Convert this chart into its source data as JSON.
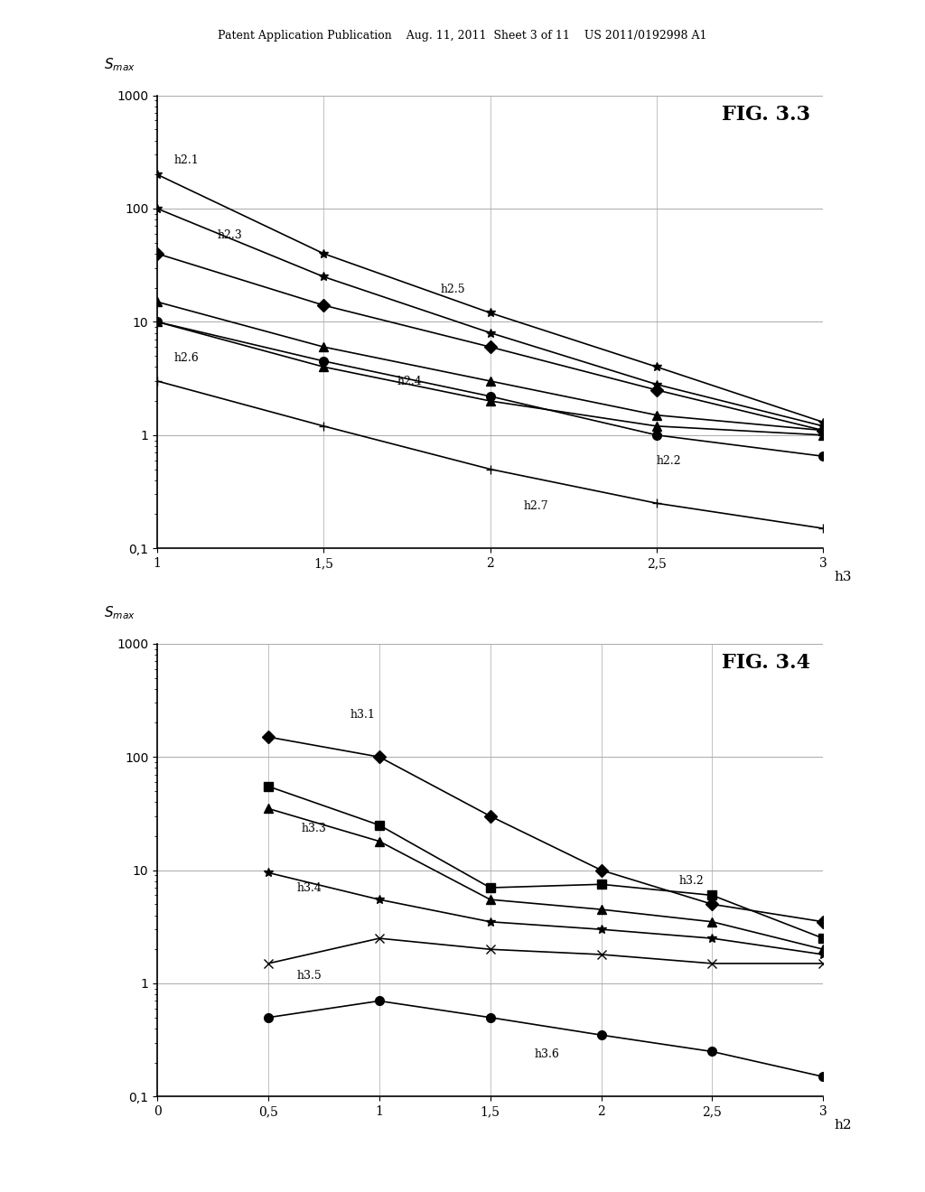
{
  "fig33": {
    "title": "FIG. 3.3",
    "xlabel": "h3",
    "ylabel": "S_max",
    "xvals": [
      1.0,
      1.5,
      2.0,
      2.5,
      3.0
    ],
    "series": {
      "h2.1": {
        "marker": "*",
        "y": [
          200,
          40,
          12,
          4.0,
          1.3
        ]
      },
      "h2.2": {
        "marker": "o",
        "y": [
          10,
          4.5,
          2.2,
          1.0,
          0.65
        ]
      },
      "h2.3": {
        "marker": "*",
        "y": [
          100,
          25,
          8.0,
          2.8,
          1.2
        ]
      },
      "h2.4": {
        "marker": "^",
        "y": [
          15,
          6.0,
          3.0,
          1.5,
          1.1
        ]
      },
      "h2.5": {
        "marker": "D",
        "y": [
          40,
          14,
          6.0,
          2.5,
          1.1
        ]
      },
      "h2.6": {
        "marker": "^",
        "y": [
          10,
          4.0,
          2.0,
          1.2,
          1.0
        ]
      },
      "h2.7": {
        "marker": "+",
        "y": [
          3.0,
          1.2,
          0.5,
          0.25,
          0.15
        ]
      }
    },
    "label_positions": {
      "h2.1": [
        1.05,
        200,
        "h2.1"
      ],
      "h2.3": [
        1.15,
        80,
        "h2.3"
      ],
      "h2.5": [
        1.8,
        14,
        "h2.5"
      ],
      "h2.6": [
        1.05,
        7.5,
        "h2.6"
      ],
      "h2.4": [
        1.7,
        3.5,
        "h2.4"
      ],
      "h2.2": [
        2.45,
        0.75,
        "h2.2"
      ],
      "h2.7": [
        2.0,
        0.32,
        "h2.7"
      ]
    }
  },
  "fig34": {
    "title": "FIG. 3.4",
    "xlabel": "h2",
    "ylabel": "S_max",
    "xvals": [
      0.5,
      1.0,
      1.5,
      2.0,
      2.5,
      3.0
    ],
    "series": {
      "h3.1": {
        "marker": "D",
        "y": [
          150,
          100,
          30,
          10,
          5.0,
          3.5
        ]
      },
      "h3.2": {
        "marker": "s",
        "y": [
          55,
          25,
          7.0,
          7.5,
          6.0,
          2.5
        ]
      },
      "h3.3": {
        "marker": "^",
        "y": [
          35,
          18,
          5.5,
          4.5,
          3.5,
          2.0
        ]
      },
      "h3.4": {
        "marker": "*",
        "y": [
          9.5,
          5.5,
          3.5,
          3.0,
          2.5,
          1.8
        ]
      },
      "h3.5": {
        "marker": "x",
        "y": [
          1.5,
          2.5,
          2.0,
          1.8,
          1.5,
          1.5
        ]
      },
      "h3.6": {
        "marker": "o",
        "y": [
          0.5,
          0.7,
          0.5,
          0.35,
          0.25,
          0.15
        ]
      }
    },
    "label_positions": {
      "h3.1": [
        0.85,
        200,
        "h3.1"
      ],
      "h3.3": [
        0.7,
        25,
        "h3.3"
      ],
      "h3.4": [
        0.7,
        7.0,
        "h3.4"
      ],
      "h3.5": [
        0.7,
        1.2,
        "h3.5"
      ],
      "h3.2": [
        2.3,
        8.0,
        "h3.2"
      ],
      "h3.6": [
        1.7,
        0.32,
        "h3.6"
      ]
    }
  },
  "page_header": "Patent Application Publication    Aug. 11, 2011  Sheet 3 of 11    US 2011/0192998 A1",
  "background_color": "#ffffff",
  "line_color": "#000000",
  "grid_color": "#aaaaaa"
}
